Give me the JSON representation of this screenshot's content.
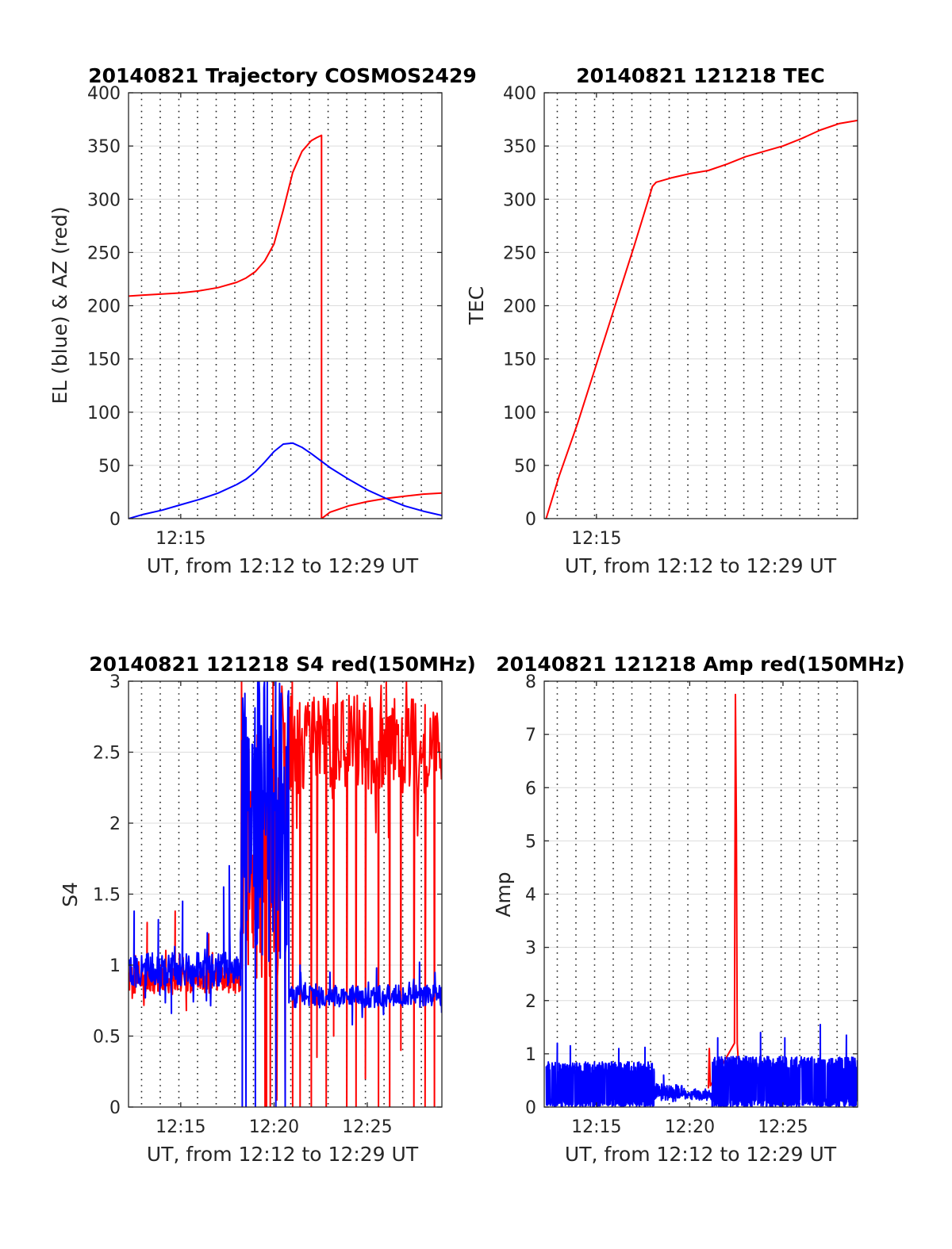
{
  "chart_data": [
    {
      "id": "trajectory",
      "type": "line",
      "title": "20140821 Trajectory COSMOS2429",
      "xlabel": "UT, from 12:12 to 12:29 UT",
      "ylabel": "EL (blue) & AZ (red)",
      "xlim": [
        12.2,
        29.0
      ],
      "ylim": [
        0,
        400
      ],
      "yticks": [
        0,
        50,
        100,
        150,
        200,
        250,
        300,
        350,
        400
      ],
      "yticklabels": [
        "0",
        "50",
        "100",
        "150",
        "200",
        "250",
        "300",
        "350",
        "400"
      ],
      "xticks": [
        {
          "value": 15,
          "label": "12:15"
        }
      ],
      "grid_x": [
        12.9,
        13.9,
        14.9,
        15.9,
        16.9,
        17.9,
        18.9,
        19.9,
        20.9,
        21.9,
        22.9,
        23.9,
        24.9,
        25.9,
        26.9,
        27.9
      ],
      "grid": true,
      "series": [
        {
          "color": "#ff0000",
          "kind": "line",
          "x": [
            12.2,
            13.0,
            14.0,
            15.0,
            16.0,
            17.0,
            18.0,
            18.5,
            19.0,
            19.5,
            20.0,
            20.5,
            21.0,
            21.5,
            22.0,
            22.3,
            22.55,
            22.55,
            23.0,
            24.0,
            25.0,
            26.0,
            27.0,
            28.0,
            29.0
          ],
          "y": [
            209,
            210,
            211,
            212,
            214,
            217,
            222,
            226,
            232,
            242,
            258,
            290,
            325,
            345,
            355,
            358,
            360,
            0,
            6,
            12,
            16,
            19,
            21,
            23,
            24
          ]
        },
        {
          "color": "#0000ff",
          "kind": "line",
          "x": [
            12.2,
            13.0,
            14.0,
            15.0,
            16.0,
            17.0,
            18.0,
            18.5,
            19.0,
            19.5,
            20.0,
            20.5,
            21.0,
            21.5,
            22.0,
            23.0,
            24.0,
            25.0,
            26.0,
            27.0,
            28.0,
            29.0
          ],
          "y": [
            0,
            4,
            8,
            13,
            18,
            24,
            32,
            37,
            44,
            53,
            63,
            70,
            71,
            67,
            61,
            48,
            37,
            27,
            19,
            12,
            7,
            3
          ]
        }
      ]
    },
    {
      "id": "tec",
      "type": "line",
      "title": "20140821 121218 TEC",
      "xlabel": "UT, from 12:12 to 12:29 UT",
      "ylabel": "TEC",
      "xlim": [
        12.2,
        29.0
      ],
      "ylim": [
        0,
        400
      ],
      "yticks": [
        0,
        50,
        100,
        150,
        200,
        250,
        300,
        350,
        400
      ],
      "yticklabels": [
        "0",
        "50",
        "100",
        "150",
        "200",
        "250",
        "300",
        "350",
        "400"
      ],
      "xticks": [
        {
          "value": 15,
          "label": "12:15"
        }
      ],
      "grid_x": [
        12.9,
        13.9,
        14.9,
        15.9,
        16.9,
        17.9,
        18.9,
        19.9,
        20.9,
        21.9,
        22.9,
        23.9,
        24.9,
        25.9,
        26.9,
        27.9
      ],
      "grid": true,
      "series": [
        {
          "color": "#ff0000",
          "kind": "line",
          "x": [
            12.3,
            13.0,
            14.0,
            15.0,
            16.0,
            17.0,
            18.0,
            18.2,
            19.0,
            20.0,
            21.0,
            22.0,
            23.0,
            24.0,
            25.0,
            26.0,
            27.0,
            28.0,
            29.0
          ],
          "y": [
            0,
            40,
            90,
            145,
            200,
            255,
            312,
            316,
            320,
            324,
            327,
            333,
            340,
            345,
            350,
            357,
            365,
            371,
            374
          ]
        }
      ]
    },
    {
      "id": "s4",
      "type": "line",
      "title": "20140821 121218 S4 red(150MHz)",
      "xlabel": "UT, from 12:12 to 12:29 UT",
      "ylabel": "S4",
      "xlim": [
        12.2,
        29.0
      ],
      "ylim": [
        0,
        3
      ],
      "yticks": [
        0,
        0.5,
        1,
        1.5,
        2,
        2.5,
        3
      ],
      "yticklabels": [
        "0",
        "0.5",
        "1",
        "1.5",
        "2",
        "2.5",
        "3"
      ],
      "xticks": [
        {
          "value": 15,
          "label": "12:15"
        },
        {
          "value": 20,
          "label": "12:20"
        },
        {
          "value": 25,
          "label": "12:25"
        }
      ],
      "grid_x": [
        12.9,
        13.9,
        14.9,
        15.9,
        16.9,
        17.9,
        18.9,
        19.9,
        20.9,
        21.9,
        22.9,
        23.9,
        24.9,
        25.9,
        26.9,
        27.9
      ],
      "grid": true,
      "series": [
        {
          "color": "#ff0000",
          "kind": "noise",
          "segments": [
            {
              "x0": 12.2,
              "x1": 18.2,
              "mean": 0.9,
              "spread": 0.1,
              "step": 0.025,
              "spikes": [
                {
                  "x": 13.2,
                  "y": 1.3
                },
                {
                  "x": 14.7,
                  "y": 1.38
                },
                {
                  "x": 16.5,
                  "y": 1.22
                },
                {
                  "x": 15.3,
                  "y": 0.68
                }
              ]
            },
            {
              "x0": 18.2,
              "x1": 20.3,
              "mean": 1.8,
              "spread": 0.9,
              "step": 0.03,
              "spikes": [
                {
                  "x": 19.6,
                  "y": 0
                },
                {
                  "x": 19.8,
                  "y": 0
                },
                {
                  "x": 19.95,
                  "y": 3
                }
              ]
            },
            {
              "x0": 20.3,
              "x1": 29.0,
              "mean": 2.55,
              "spread": 0.35,
              "step": 0.04,
              "spikes": [
                {
                  "x": 20.6,
                  "y": 0
                },
                {
                  "x": 21.0,
                  "y": 0
                },
                {
                  "x": 21.4,
                  "y": 0
                },
                {
                  "x": 22.0,
                  "y": 0
                },
                {
                  "x": 22.3,
                  "y": 0.35
                },
                {
                  "x": 22.8,
                  "y": 0
                },
                {
                  "x": 23.2,
                  "y": 0.5
                },
                {
                  "x": 23.9,
                  "y": 0
                },
                {
                  "x": 24.4,
                  "y": 0
                },
                {
                  "x": 24.9,
                  "y": 0.2
                },
                {
                  "x": 25.6,
                  "y": 0
                },
                {
                  "x": 26.2,
                  "y": 0
                },
                {
                  "x": 26.8,
                  "y": 0.4
                },
                {
                  "x": 27.5,
                  "y": 0
                },
                {
                  "x": 28.1,
                  "y": 0
                },
                {
                  "x": 28.6,
                  "y": 0
                }
              ]
            }
          ]
        },
        {
          "color": "#0000ff",
          "kind": "noise",
          "segments": [
            {
              "x0": 12.2,
              "x1": 18.2,
              "mean": 0.97,
              "spread": 0.12,
              "step": 0.025,
              "spikes": [
                {
                  "x": 12.5,
                  "y": 1.38
                },
                {
                  "x": 13.8,
                  "y": 1.32
                },
                {
                  "x": 15.1,
                  "y": 1.45
                },
                {
                  "x": 17.3,
                  "y": 1.55
                },
                {
                  "x": 17.6,
                  "y": 1.7
                },
                {
                  "x": 14.5,
                  "y": 0.66
                }
              ]
            },
            {
              "x0": 18.2,
              "x1": 20.8,
              "mean": 2.0,
              "spread": 1.0,
              "step": 0.03,
              "spikes": [
                {
                  "x": 18.3,
                  "y": 0
                },
                {
                  "x": 18.5,
                  "y": 0
                },
                {
                  "x": 19.0,
                  "y": 0
                },
                {
                  "x": 19.2,
                  "y": 3
                },
                {
                  "x": 20.1,
                  "y": 0
                },
                {
                  "x": 20.6,
                  "y": 0
                }
              ]
            },
            {
              "x0": 20.8,
              "x1": 29.0,
              "mean": 0.78,
              "spread": 0.08,
              "step": 0.03,
              "spikes": [
                {
                  "x": 21.4,
                  "y": 1.0
                },
                {
                  "x": 23.0,
                  "y": 0.95
                },
                {
                  "x": 25.5,
                  "y": 0.98
                },
                {
                  "x": 27.8,
                  "y": 1.02
                },
                {
                  "x": 24.2,
                  "y": 0.58
                }
              ]
            }
          ]
        }
      ]
    },
    {
      "id": "amp",
      "type": "line",
      "title": "20140821 121218 Amp red(150MHz)",
      "xlabel": "UT, from 12:12 to 12:29 UT",
      "ylabel": "Amp",
      "xlim": [
        12.2,
        29.0
      ],
      "ylim": [
        0,
        8
      ],
      "yticks": [
        0,
        1,
        2,
        3,
        4,
        5,
        6,
        7,
        8
      ],
      "yticklabels": [
        "0",
        "1",
        "2",
        "3",
        "4",
        "5",
        "6",
        "7",
        "8"
      ],
      "xticks": [
        {
          "value": 15,
          "label": "12:15"
        },
        {
          "value": 20,
          "label": "12:20"
        },
        {
          "value": 25,
          "label": "12:25"
        }
      ],
      "grid_x": [
        12.9,
        13.9,
        14.9,
        15.9,
        16.9,
        17.9,
        18.9,
        19.9,
        20.9,
        21.9,
        22.9,
        23.9,
        24.9,
        25.9,
        26.9,
        27.9
      ],
      "grid": true,
      "series": [
        {
          "color": "#ff0000",
          "kind": "polyline",
          "x": [
            21.0,
            21.05,
            21.1,
            22.4,
            22.45,
            22.5,
            22.55,
            22.6
          ],
          "y": [
            0.35,
            1.1,
            0.4,
            1.2,
            7.75,
            5.3,
            1.2,
            0.9
          ]
        },
        {
          "color": "#0000ff",
          "kind": "band",
          "segments": [
            {
              "x0": 12.3,
              "x1": 18.1,
              "low": 0.0,
              "high": 0.85,
              "step": 0.012,
              "spikes": [
                {
                  "x": 12.9,
                  "y": 1.2
                },
                {
                  "x": 13.6,
                  "y": 1.15
                },
                {
                  "x": 16.2,
                  "y": 1.1
                },
                {
                  "x": 17.6,
                  "y": 1.12
                }
              ]
            },
            {
              "x0": 18.1,
              "x1": 19.6,
              "low": 0.1,
              "high": 0.45,
              "step": 0.02,
              "spikes": [
                {
                  "x": 18.6,
                  "y": 0.6
                }
              ]
            },
            {
              "x0": 19.6,
              "x1": 21.2,
              "low": 0.15,
              "high": 0.35,
              "step": 0.02,
              "spikes": []
            },
            {
              "x0": 21.2,
              "x1": 29.0,
              "low": 0.0,
              "high": 0.95,
              "step": 0.012,
              "spikes": [
                {
                  "x": 21.5,
                  "y": 1.3
                },
                {
                  "x": 23.8,
                  "y": 1.4
                },
                {
                  "x": 25.1,
                  "y": 1.3
                },
                {
                  "x": 27.0,
                  "y": 1.55
                },
                {
                  "x": 28.4,
                  "y": 1.35
                }
              ]
            }
          ]
        }
      ]
    }
  ]
}
